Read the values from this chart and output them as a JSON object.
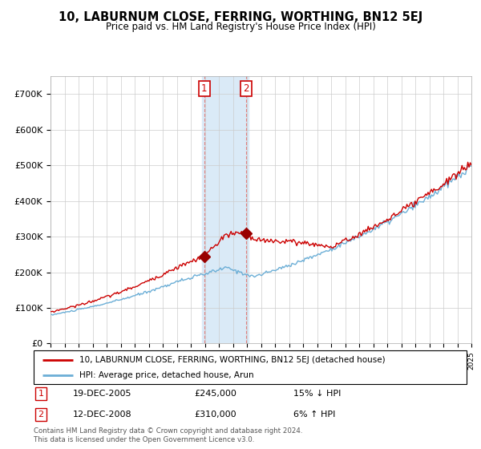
{
  "title": "10, LABURNUM CLOSE, FERRING, WORTHING, BN12 5EJ",
  "subtitle": "Price paid vs. HM Land Registry's House Price Index (HPI)",
  "legend_line1": "10, LABURNUM CLOSE, FERRING, WORTHING, BN12 5EJ (detached house)",
  "legend_line2": "HPI: Average price, detached house, Arun",
  "transaction1_date": "19-DEC-2005",
  "transaction1_price": "£245,000",
  "transaction1_hpi": "15% ↓ HPI",
  "transaction2_date": "12-DEC-2008",
  "transaction2_price": "£310,000",
  "transaction2_hpi": "6% ↑ HPI",
  "footer": "Contains HM Land Registry data © Crown copyright and database right 2024.\nThis data is licensed under the Open Government Licence v3.0.",
  "house_color": "#cc0000",
  "hpi_color": "#6baed6",
  "shade_color": "#daeaf7",
  "marker_color": "#990000",
  "ylim": [
    0,
    750000
  ],
  "yticks": [
    0,
    100000,
    200000,
    300000,
    400000,
    500000,
    600000,
    700000
  ],
  "ytick_labels": [
    "£0",
    "£100K",
    "£200K",
    "£300K",
    "£400K",
    "£500K",
    "£600K",
    "£700K"
  ],
  "transaction1_x": 2005.96,
  "transaction1_y": 245000,
  "transaction2_x": 2008.95,
  "transaction2_y": 310000,
  "shade_x1": 2005.8,
  "shade_x2": 2009.1,
  "xmin": 1995,
  "xmax": 2025
}
